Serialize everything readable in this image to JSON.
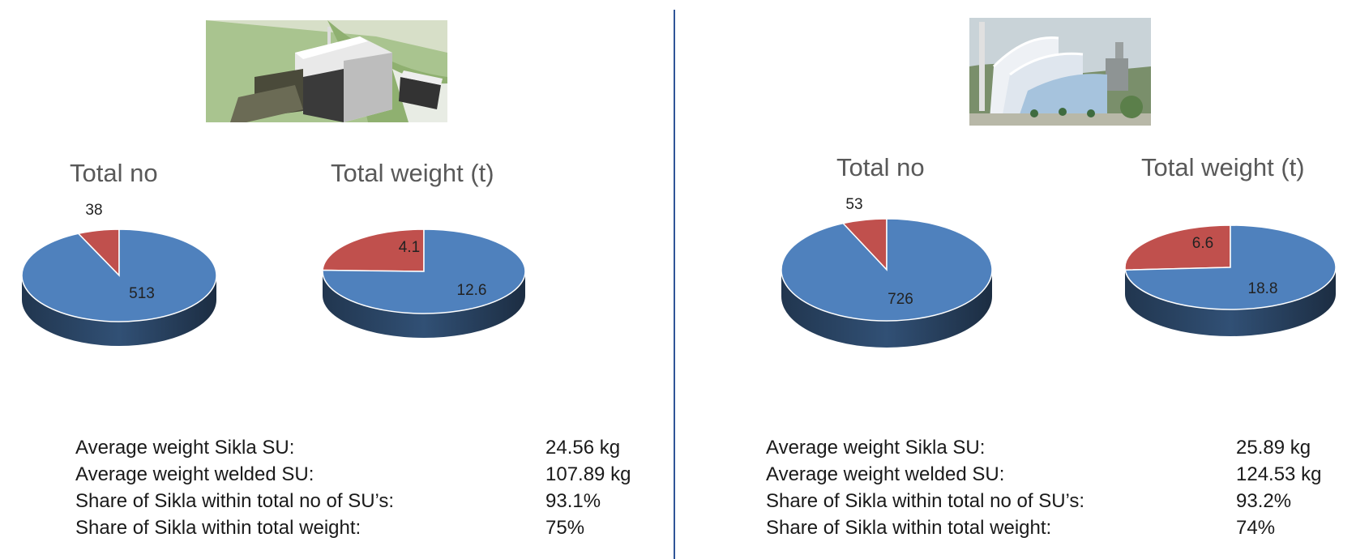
{
  "colors": {
    "sikla": "#4f81bd",
    "welded": "#c0504d",
    "divider": "#2f5597"
  },
  "panels": [
    {
      "image": "industrial-plant-rendering",
      "chart_data": [
        {
          "type": "pie",
          "title": "Total no",
          "slices": [
            {
              "label": "",
              "value": 513,
              "value_text": "513",
              "color": "#4f81bd"
            },
            {
              "label": "",
              "value": 38,
              "value_text": "38",
              "color": "#c0504d"
            }
          ]
        },
        {
          "type": "pie",
          "title": "Total weight (t)",
          "slices": [
            {
              "label": "",
              "value": 12.6,
              "value_text": "12.6",
              "color": "#4f81bd"
            },
            {
              "label": "",
              "value": 4.1,
              "value_text": "4.1",
              "color": "#c0504d"
            }
          ]
        }
      ],
      "stats": [
        {
          "label": "Average weight Sikla SU:",
          "value": "24.56 kg"
        },
        {
          "label": "Average weight welded SU:",
          "value": "107.89 kg"
        },
        {
          "label": "Share of Sikla within total no of SU’s:",
          "value": "93.1%"
        },
        {
          "label": "Share of Sikla within total weight:",
          "value": "75%"
        }
      ]
    },
    {
      "image": "power-plant-photo",
      "chart_data": [
        {
          "type": "pie",
          "title": "Total no",
          "slices": [
            {
              "label": "",
              "value": 726,
              "value_text": "726",
              "color": "#4f81bd"
            },
            {
              "label": "",
              "value": 53,
              "value_text": "53",
              "color": "#c0504d"
            }
          ]
        },
        {
          "type": "pie",
          "title": "Total weight (t)",
          "slices": [
            {
              "label": "",
              "value": 18.8,
              "value_text": "18.8",
              "color": "#4f81bd"
            },
            {
              "label": "",
              "value": 6.6,
              "value_text": "6.6",
              "color": "#c0504d"
            }
          ]
        }
      ],
      "stats": [
        {
          "label": "Average weight Sikla SU:",
          "value": "25.89 kg"
        },
        {
          "label": "Average weight welded SU:",
          "value": "124.53 kg"
        },
        {
          "label": "Share of Sikla within total no of SU’s:",
          "value": "93.2%"
        },
        {
          "label": "Share of Sikla within total weight:",
          "value": "74%"
        }
      ]
    }
  ]
}
